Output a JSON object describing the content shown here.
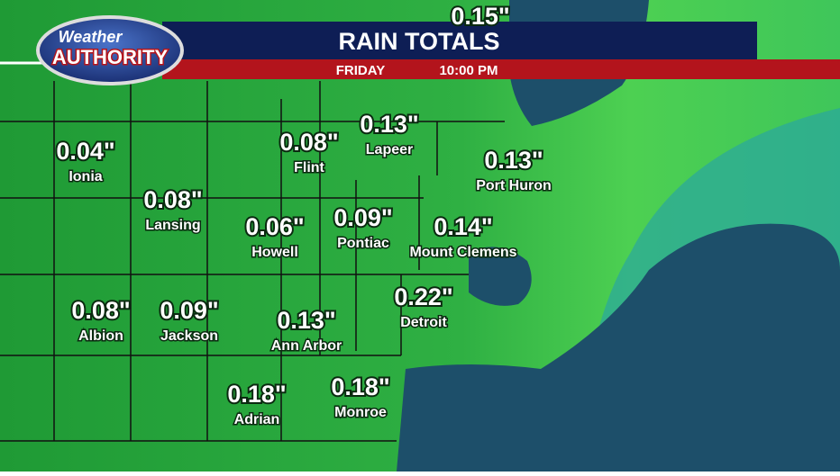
{
  "header": {
    "logo_top": "Weather",
    "logo_bottom": "AUTHORITY",
    "title": "RAIN TOTALS",
    "day": "FRIDAY",
    "time": "10:00 PM"
  },
  "cities": [
    {
      "value": "0.15\"",
      "name": null
    },
    {
      "value": "0.04\"",
      "name": "Ionia"
    },
    {
      "value": "0.08\"",
      "name": "Lansing"
    },
    {
      "value": "0.08\"",
      "name": "Flint"
    },
    {
      "value": "0.13\"",
      "name": "Lapeer"
    },
    {
      "value": "0.13\"",
      "name": "Port Huron"
    },
    {
      "value": "0.06\"",
      "name": "Howell"
    },
    {
      "value": "0.09\"",
      "name": "Pontiac"
    },
    {
      "value": "0.14\"",
      "name": "Mount Clemens"
    },
    {
      "value": "0.22\"",
      "name": "Detroit"
    },
    {
      "value": "0.08\"",
      "name": "Albion"
    },
    {
      "value": "0.09\"",
      "name": "Jackson"
    },
    {
      "value": "0.13\"",
      "name": "Ann Arbor"
    },
    {
      "value": "0.18\"",
      "name": "Adrian"
    },
    {
      "value": "0.18\"",
      "name": "Monroe"
    }
  ]
}
